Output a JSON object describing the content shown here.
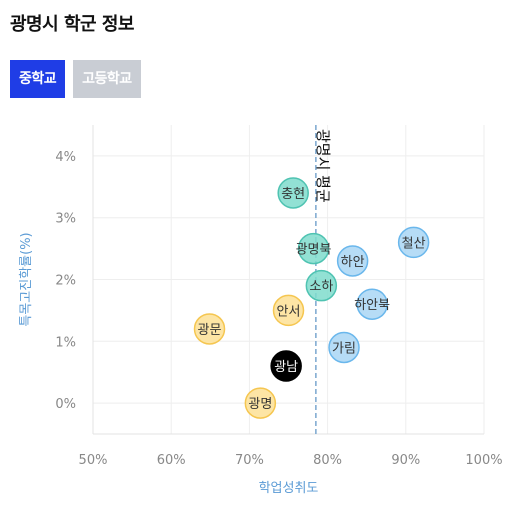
{
  "page": {
    "title": "광명시 학군 정보",
    "tabs": [
      {
        "label": "중학교",
        "active": true
      },
      {
        "label": "고등학교",
        "active": false
      }
    ]
  },
  "colors": {
    "accent": "#1f3de6",
    "tab_inactive": "#c9cdd4",
    "axis_label": "#5b9bd5",
    "reference_line": "#7aa7cf"
  },
  "chart_data": {
    "type": "scatter",
    "xlabel": "학업성취도",
    "ylabel": "특목고진학률(%)",
    "xlim": [
      50,
      100
    ],
    "ylim": [
      -0.5,
      4.5
    ],
    "xticks": [
      "50%",
      "60%",
      "70%",
      "80%",
      "90%",
      "100%"
    ],
    "xtick_values": [
      50,
      60,
      70,
      80,
      90,
      100
    ],
    "yticks": [
      "0%",
      "1%",
      "2%",
      "3%",
      "4%"
    ],
    "ytick_values": [
      0,
      1,
      2,
      3,
      4
    ],
    "grid": true,
    "reference_line": {
      "label": "광명시 평균",
      "x": 78.5
    },
    "points": [
      {
        "name": "충현",
        "x": 75.6,
        "y": 3.4,
        "color": "#7fdccc",
        "stroke": "#4fc3b2"
      },
      {
        "name": "광명북",
        "x": 78.2,
        "y": 2.5,
        "color": "#7fdccc",
        "stroke": "#4fc3b2"
      },
      {
        "name": "소하",
        "x": 79.2,
        "y": 1.9,
        "color": "#7fdccc",
        "stroke": "#4fc3b2"
      },
      {
        "name": "하안",
        "x": 83.2,
        "y": 2.3,
        "color": "#a9d6f5",
        "stroke": "#6ab7ec"
      },
      {
        "name": "철산",
        "x": 91.0,
        "y": 2.6,
        "color": "#a9d6f5",
        "stroke": "#6ab7ec"
      },
      {
        "name": "하안북",
        "x": 85.7,
        "y": 1.6,
        "color": "#a9d6f5",
        "stroke": "#6ab7ec"
      },
      {
        "name": "가림",
        "x": 82.1,
        "y": 0.9,
        "color": "#a9d6f5",
        "stroke": "#6ab7ec"
      },
      {
        "name": "안서",
        "x": 75.0,
        "y": 1.5,
        "color": "#fde095",
        "stroke": "#f5c650"
      },
      {
        "name": "광문",
        "x": 64.9,
        "y": 1.2,
        "color": "#fde095",
        "stroke": "#f5c650"
      },
      {
        "name": "광명",
        "x": 71.4,
        "y": 0.0,
        "color": "#fde095",
        "stroke": "#f5c650"
      },
      {
        "name": "광남",
        "x": 74.7,
        "y": 0.6,
        "color": "#000000",
        "stroke": "#000000",
        "dark": true
      }
    ]
  }
}
